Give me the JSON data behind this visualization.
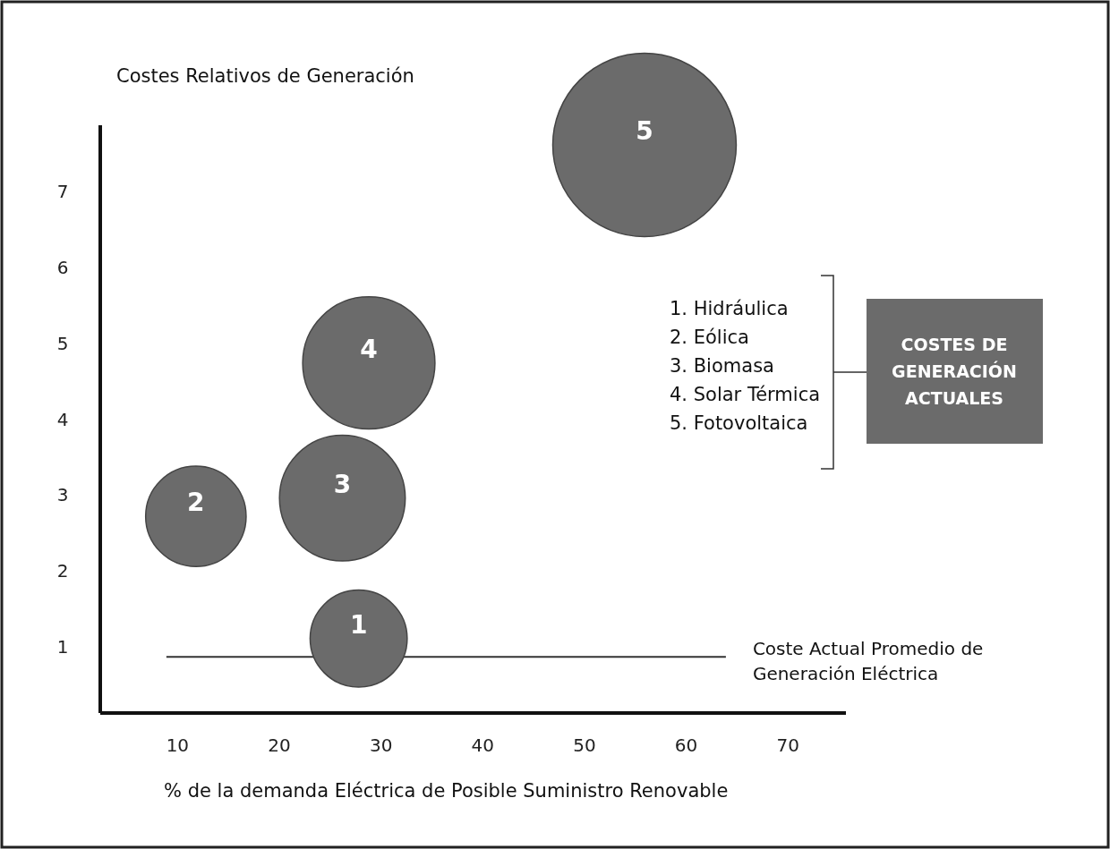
{
  "chart_data": {
    "type": "bubble",
    "ylabel": "Costes Relativos de Generación",
    "xlabel": "% de la demanda Eléctrica de Posible Suministro Renovable",
    "xlim": [
      2.4,
      75.7
    ],
    "ylim": [
      0.13,
      7.87
    ],
    "xticks": [
      10,
      20,
      30,
      40,
      50,
      60,
      70
    ],
    "yticks": [
      1,
      2,
      3,
      4,
      5,
      6,
      7
    ],
    "grid": false,
    "series": [
      {
        "type": "bubble",
        "color": "#6b6b6b",
        "x": [
          27.8,
          11.8,
          26.2,
          28.8,
          55.9
        ],
        "values": [
          1.11,
          2.72,
          2.96,
          4.74,
          7.61
        ],
        "sizes": [
          0.28,
          0.3,
          0.47,
          0.52,
          1
        ]
      },
      {
        "type": "line",
        "name": "Coste Actual Promedio de Generación Eléctrica",
        "color": "#333333",
        "x": [
          8.9,
          63.9
        ],
        "values": [
          0.87,
          0.87
        ]
      }
    ],
    "annotations": [
      {
        "text": "1",
        "x": 27.8,
        "y": 1.11
      },
      {
        "text": "2",
        "x": 11.8,
        "y": 2.72
      },
      {
        "text": "3",
        "x": 26.2,
        "y": 2.96
      },
      {
        "text": "4",
        "x": 28.8,
        "y": 4.74
      },
      {
        "text": "5",
        "x": 55.9,
        "y": 7.61
      },
      "1. Hidráulica",
      "2. Eólica",
      "3. Biomasa",
      "4. Solar Térmica",
      "5. Fotovoltaica",
      "COSTES DE\nGENERACIÓN\nACTUALES"
    ]
  }
}
